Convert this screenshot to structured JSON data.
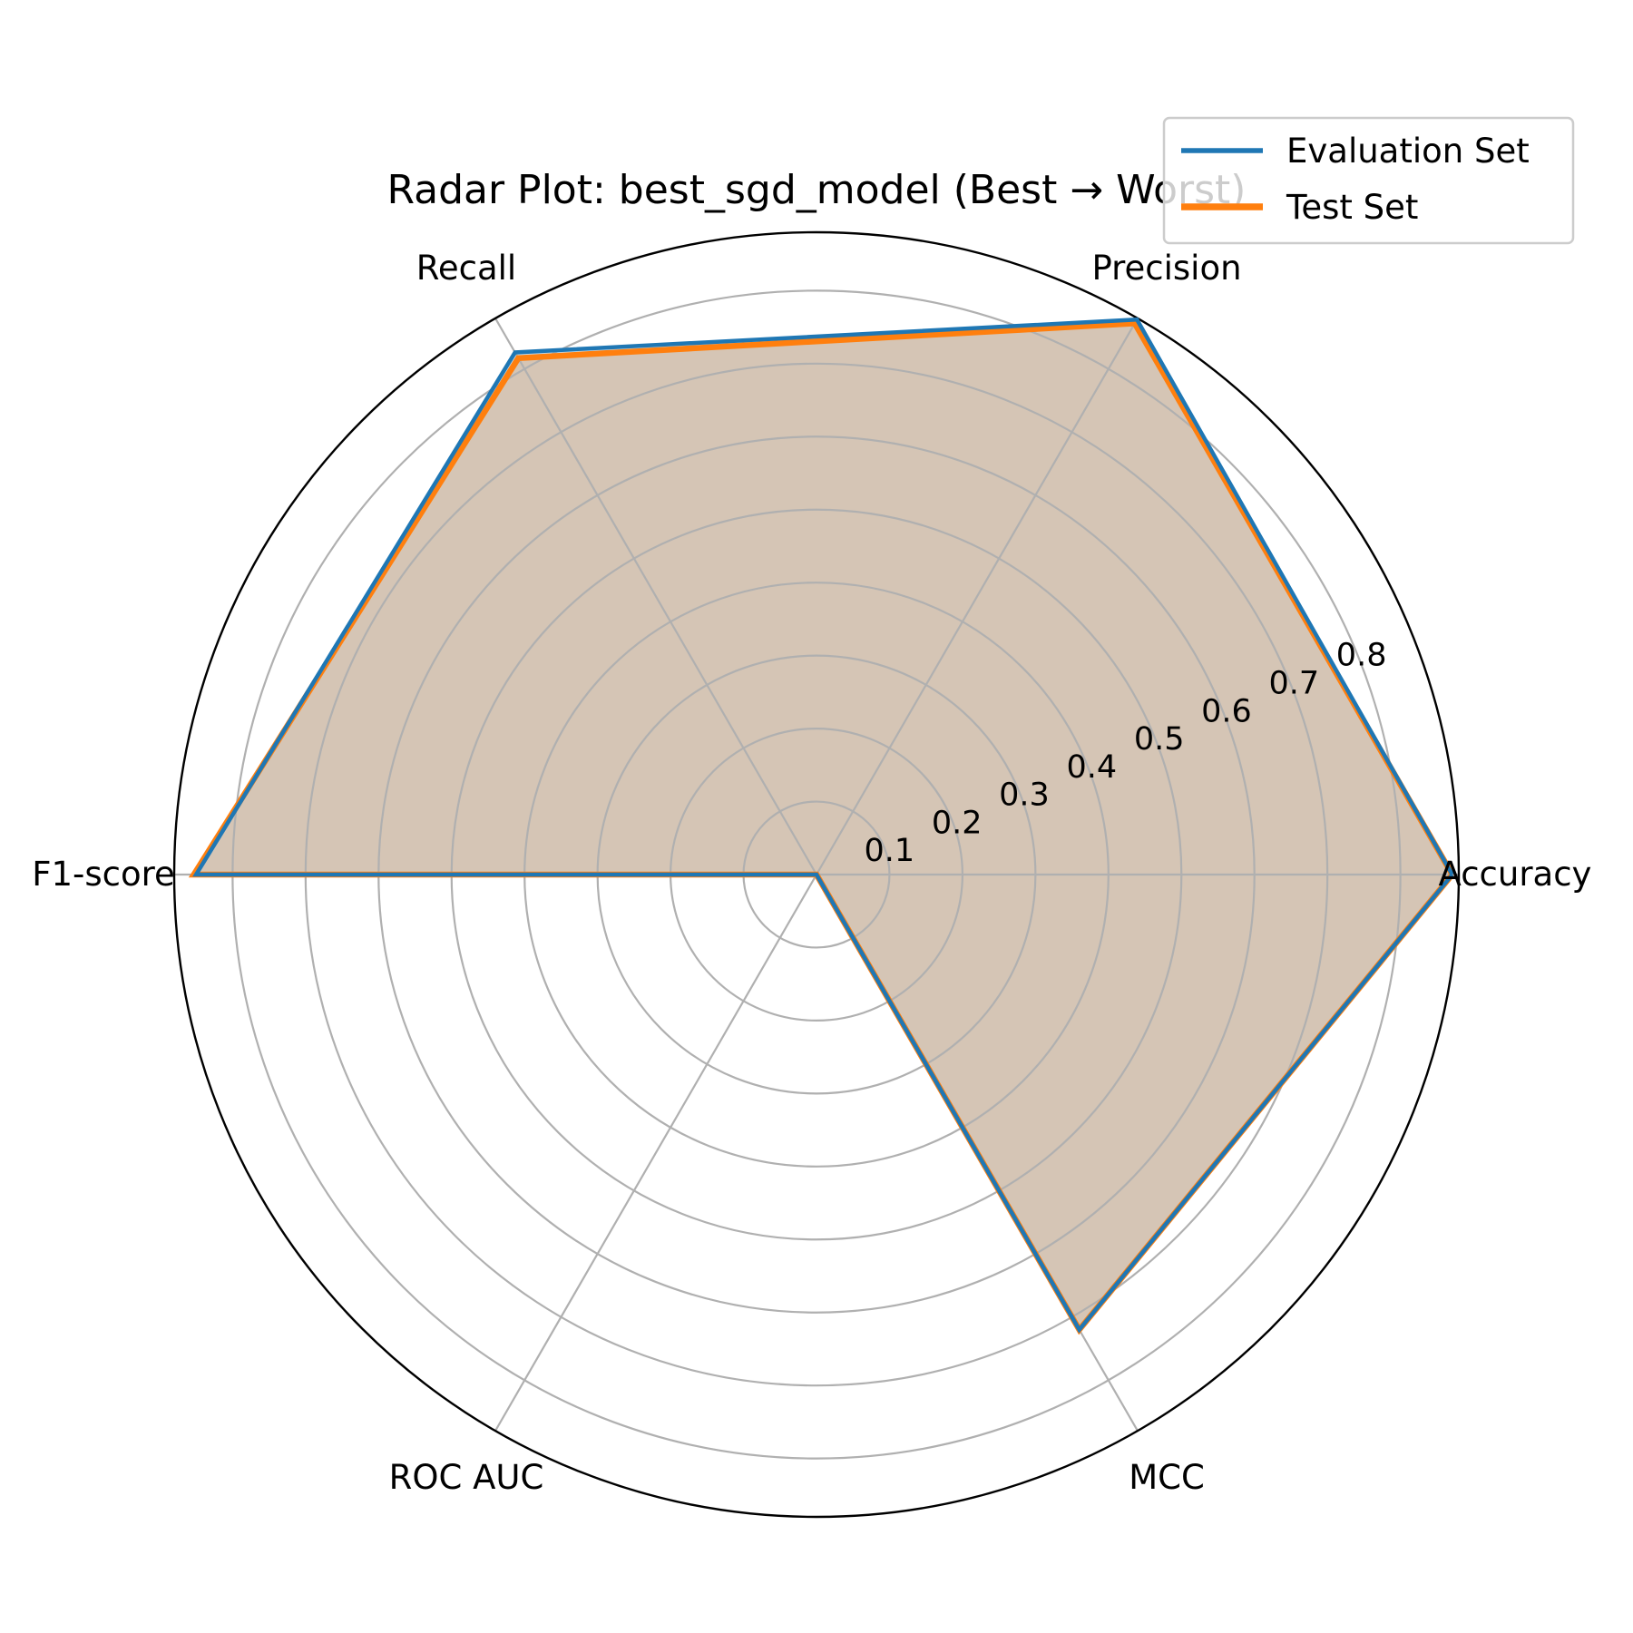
{
  "chart_data": {
    "type": "radar",
    "title": "Radar Plot: best_sgd_model (Best → Worst)",
    "categories": [
      "Accuracy",
      "Precision",
      "Recall",
      "F1-score",
      "ROC AUC",
      "MCC"
    ],
    "radial_ticks": [
      0.1,
      0.2,
      0.3,
      0.4,
      0.5,
      0.6,
      0.7,
      0.8
    ],
    "radial_tick_labels": [
      "0.1",
      "0.2",
      "0.3",
      "0.4",
      "0.5",
      "0.6",
      "0.7",
      "0.8"
    ],
    "rmax": 0.88,
    "grid": true,
    "legend_position": "top-right",
    "series": [
      {
        "name": "Evaluation Set",
        "color": "#1f77b4",
        "values": [
          0.871,
          0.878,
          0.826,
          0.85,
          0.0,
          0.72
        ]
      },
      {
        "name": "Test Set",
        "color": "#ff7f0e",
        "values": [
          0.871,
          0.872,
          0.817,
          0.853,
          0.0,
          0.72
        ]
      }
    ],
    "fill_color": "#d4c4b4"
  }
}
